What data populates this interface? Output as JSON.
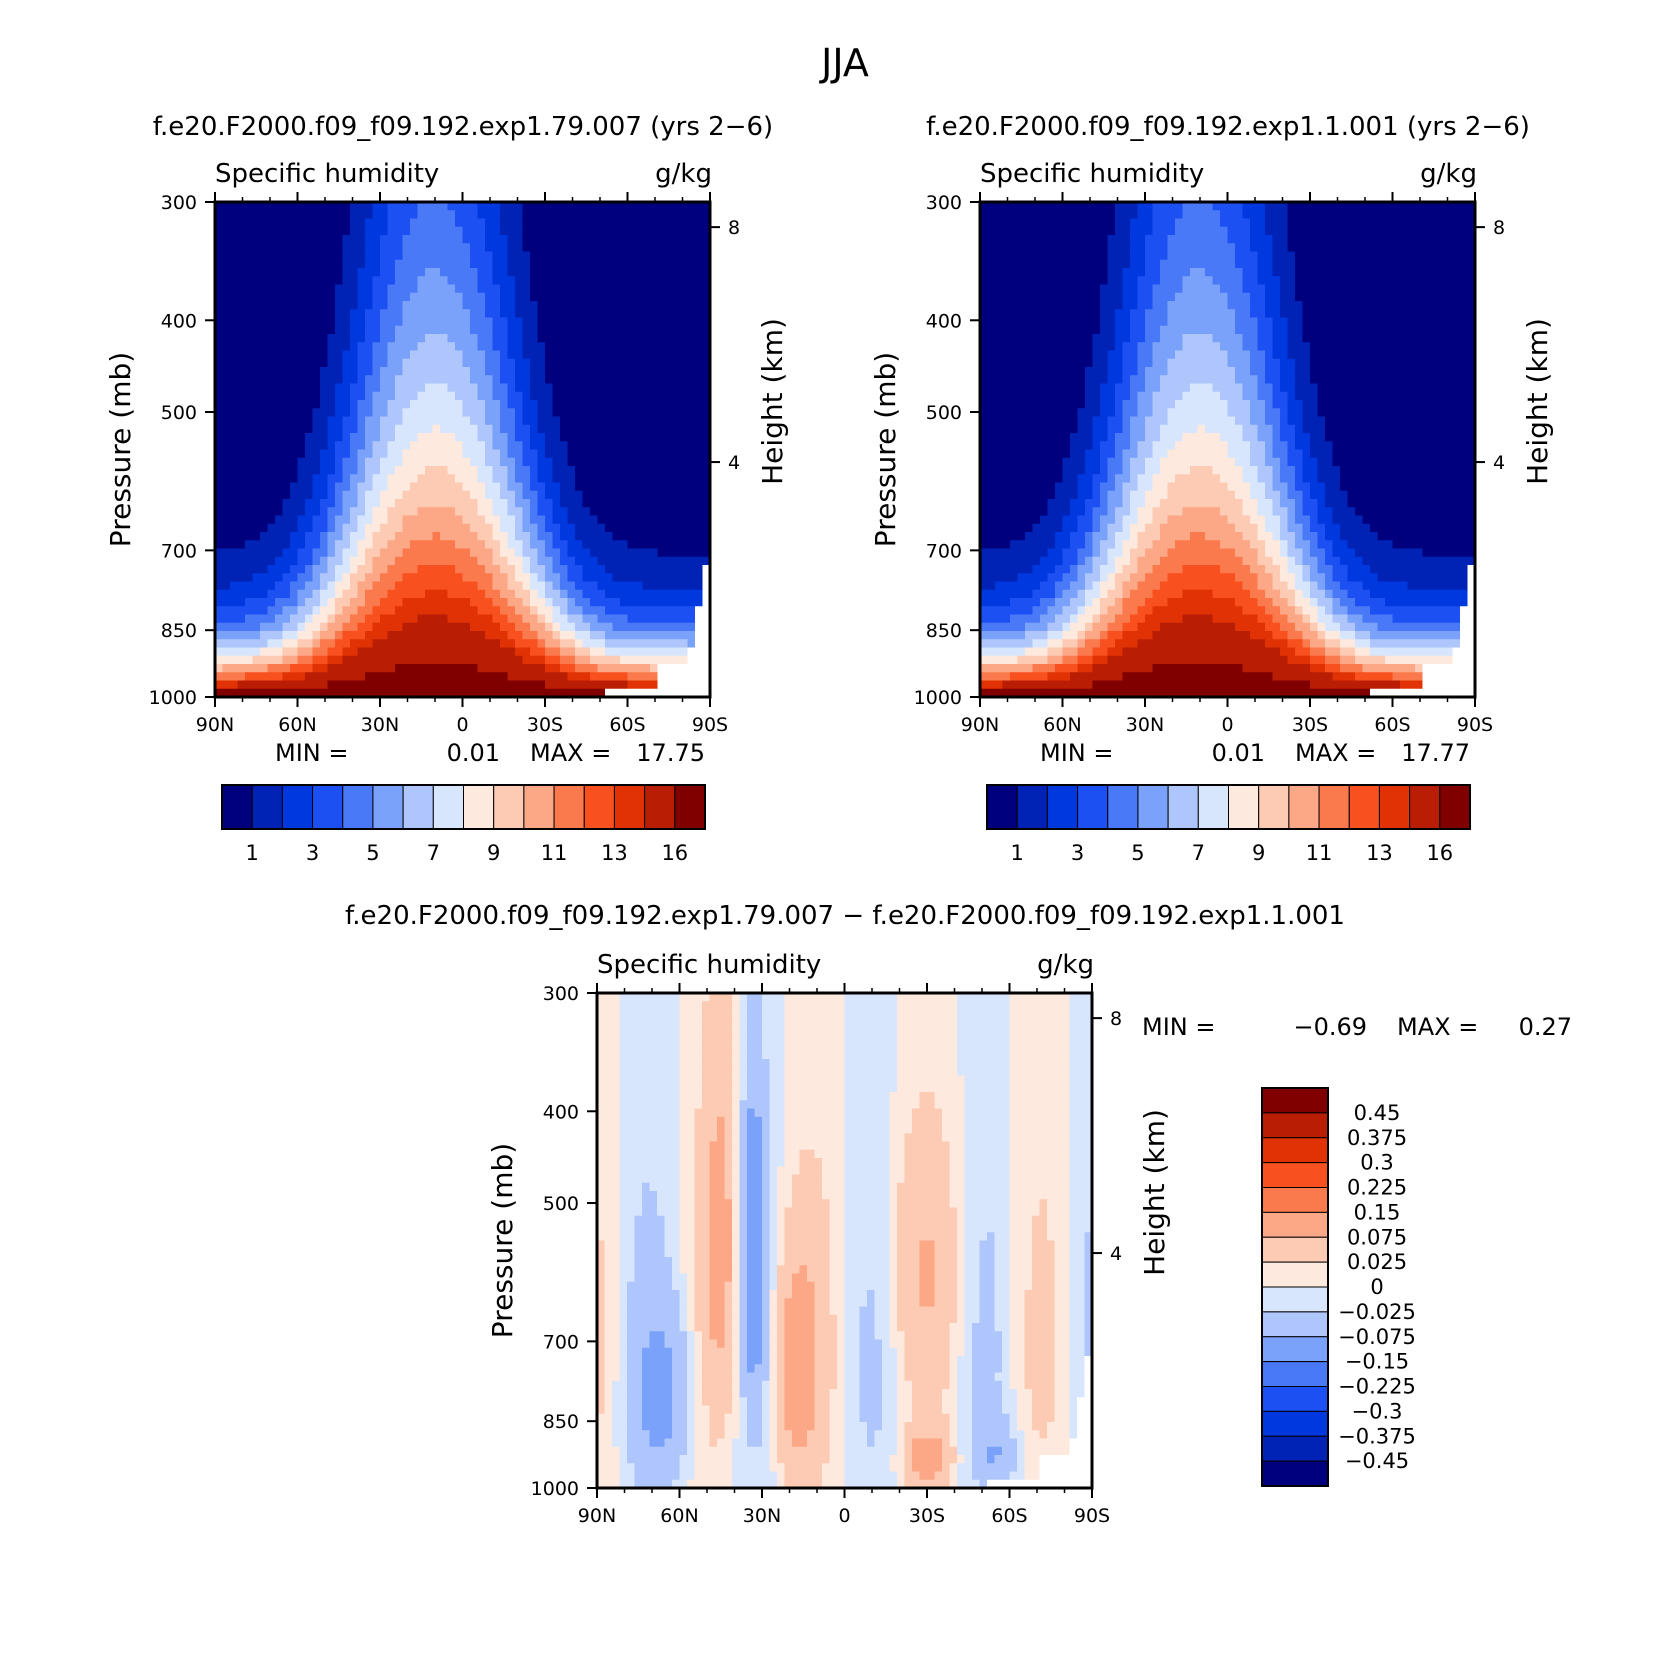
{
  "page": {
    "title": "JJA"
  },
  "chart_data": [
    {
      "type": "heatmap",
      "run_title": "f.e20.F2000.f09_f09.192.exp1.79.007 (yrs 2−6)",
      "variable": "Specific humidity",
      "units": "g/kg",
      "ylabel": "Pressure (mb)",
      "ylabel_right": "Height (km)",
      "x_ticks": [
        "90N",
        "60N",
        "30N",
        "0",
        "30S",
        "60S",
        "90S"
      ],
      "y_ticks": [
        "300",
        "400",
        "500",
        "700",
        "850",
        "1000"
      ],
      "height_ticks": [
        "8",
        "4"
      ],
      "stats": {
        "min_label": "MIN =",
        "min": "0.01",
        "max_label": "MAX =",
        "max": "17.75"
      },
      "levels": [
        1,
        2,
        3,
        4,
        5,
        6,
        7,
        8,
        9,
        10,
        11,
        12,
        13,
        14,
        16
      ],
      "colorbar_labels": [
        "1",
        "3",
        "5",
        "7",
        "9",
        "11",
        "13",
        "16"
      ],
      "colors": [
        "#00007f",
        "#0022b5",
        "#0038e0",
        "#1c50f2",
        "#4a79f7",
        "#7aa2fa",
        "#aec6fb",
        "#d7e6fd",
        "#fde9dd",
        "#fdcab3",
        "#fca786",
        "#fb7a4d",
        "#f9501f",
        "#e03204",
        "#b91e04",
        "#800000"
      ],
      "field": {
        "peak": 17.75,
        "peak_lat": 10
      }
    },
    {
      "type": "heatmap",
      "run_title": "f.e20.F2000.f09_f09.192.exp1.1.001 (yrs 2−6)",
      "variable": "Specific humidity",
      "units": "g/kg",
      "ylabel": "Pressure (mb)",
      "ylabel_right": "Height (km)",
      "x_ticks": [
        "90N",
        "60N",
        "30N",
        "0",
        "30S",
        "60S",
        "90S"
      ],
      "y_ticks": [
        "300",
        "400",
        "500",
        "700",
        "850",
        "1000"
      ],
      "height_ticks": [
        "8",
        "4"
      ],
      "stats": {
        "min_label": "MIN =",
        "min": "0.01",
        "max_label": "MAX =",
        "max": "17.77"
      },
      "levels": [
        1,
        2,
        3,
        4,
        5,
        6,
        7,
        8,
        9,
        10,
        11,
        12,
        13,
        14,
        16
      ],
      "colorbar_labels": [
        "1",
        "3",
        "5",
        "7",
        "9",
        "11",
        "13",
        "16"
      ],
      "colors": [
        "#00007f",
        "#0022b5",
        "#0038e0",
        "#1c50f2",
        "#4a79f7",
        "#7aa2fa",
        "#aec6fb",
        "#d7e6fd",
        "#fde9dd",
        "#fdcab3",
        "#fca786",
        "#fb7a4d",
        "#f9501f",
        "#e03204",
        "#b91e04",
        "#800000"
      ],
      "field": {
        "peak": 17.77,
        "peak_lat": 10
      }
    },
    {
      "type": "heatmap",
      "run_title": "f.e20.F2000.f09_f09.192.exp1.79.007 − f.e20.F2000.f09_f09.192.exp1.1.001",
      "variable": "Specific humidity",
      "units": "g/kg",
      "ylabel": "Pressure (mb)",
      "ylabel_right": "Height (km)",
      "x_ticks": [
        "90N",
        "60N",
        "30N",
        "0",
        "30S",
        "60S",
        "90S"
      ],
      "y_ticks": [
        "300",
        "400",
        "500",
        "700",
        "850",
        "1000"
      ],
      "height_ticks": [
        "8",
        "4"
      ],
      "stats": {
        "min_label": "MIN =",
        "min": "−0.69",
        "max_label": "MAX =",
        "max": "0.27"
      },
      "levels": [
        -0.45,
        -0.375,
        -0.3,
        -0.225,
        -0.15,
        -0.075,
        -0.025,
        0,
        0.025,
        0.075,
        0.15,
        0.225,
        0.3,
        0.375,
        0.45
      ],
      "colorbar_labels": [
        "0.45",
        "0.375",
        "0.3",
        "0.225",
        "0.15",
        "0.075",
        "0.025",
        "0",
        "−0.025",
        "−0.075",
        "−0.15",
        "−0.225",
        "−0.3",
        "−0.375",
        "−0.45"
      ],
      "colors": [
        "#00007f",
        "#0022b5",
        "#0038e0",
        "#1c50f2",
        "#4a79f7",
        "#7aa2fa",
        "#aec6fb",
        "#d7e6fd",
        "#fde9dd",
        "#fdcab3",
        "#fca786",
        "#fb7a4d",
        "#f9501f",
        "#e03204",
        "#b91e04",
        "#800000"
      ]
    }
  ]
}
